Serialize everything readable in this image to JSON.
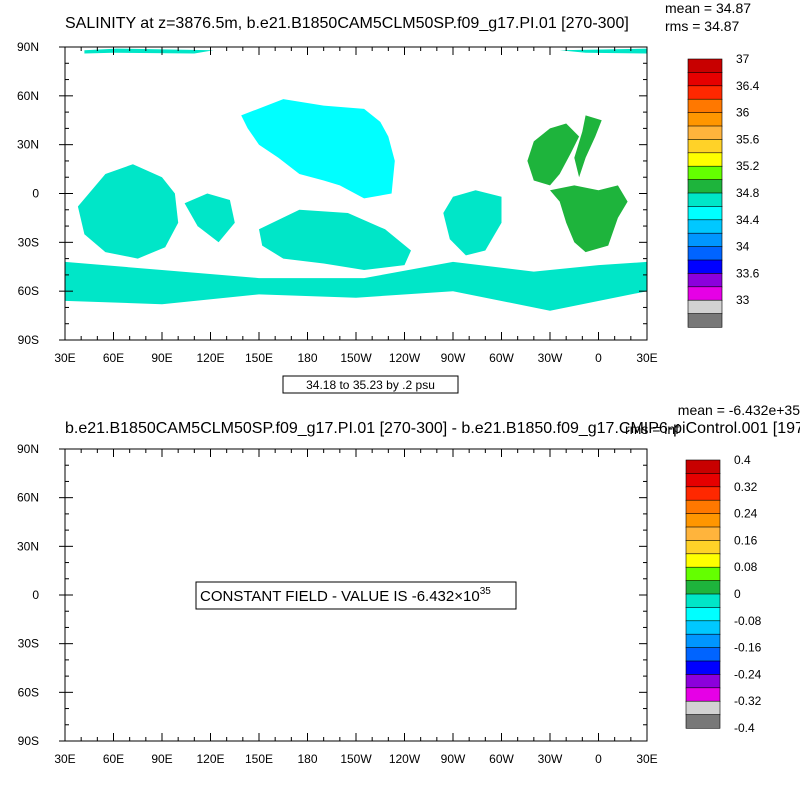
{
  "chart_data": [
    {
      "type": "heatmap",
      "title": "SALINITY at z=3876.5m, b.e21.B1850CAM5CLM50SP.f09_g17.PI.01 [270-300]",
      "stats": {
        "mean": "mean = 34.87",
        "rms": "rms = 34.87"
      },
      "x_ticks": [
        "30E",
        "60E",
        "90E",
        "120E",
        "150E",
        "180",
        "150W",
        "120W",
        "90W",
        "60W",
        "30W",
        "0",
        "30E"
      ],
      "y_ticks": [
        "90N",
        "60N",
        "30N",
        "0",
        "30S",
        "60S",
        "90S"
      ],
      "xlim": [
        30,
        390
      ],
      "ylim": [
        -90,
        90
      ],
      "info_label": "34.18 to 35.23 by .2 psu",
      "colorbar": {
        "labels": [
          "37",
          "36.4",
          "36",
          "35.6",
          "35.2",
          "34.8",
          "34.4",
          "34",
          "33.6",
          "33"
        ],
        "colors": [
          "#c80000",
          "#e60000",
          "#ff2800",
          "#ff7800",
          "#ff9600",
          "#ffb43c",
          "#ffd228",
          "#ffff00",
          "#64ff00",
          "#1eb43c",
          "#00e6c8",
          "#00ffff",
          "#00c8ff",
          "#0096ff",
          "#0064ff",
          "#0000ff",
          "#8c00dc",
          "#e600e6",
          "#d2d2d2",
          "#787878"
        ]
      },
      "regions": [
        {
          "name": "Arctic strip west",
          "color": "#00e6c8",
          "points": [
            [
              42,
              88
            ],
            [
              62,
              89
            ],
            [
              122,
              88
            ],
            [
              110,
              86
            ],
            [
              60,
              86.5
            ],
            [
              42,
              86
            ]
          ]
        },
        {
          "name": "Arctic strip east",
          "color": "#00e6c8",
          "points": [
            [
              336,
              88
            ],
            [
              390,
              89
            ],
            [
              390,
              86
            ],
            [
              352,
              86.5
            ]
          ]
        },
        {
          "name": "North Pacific",
          "color": "#00ffff",
          "points": [
            [
              139,
              48
            ],
            [
              165,
              58
            ],
            [
              190,
              54
            ],
            [
              215,
              52
            ],
            [
              225,
              44
            ],
            [
              230,
              35
            ],
            [
              234,
              20
            ],
            [
              232,
              0
            ],
            [
              215,
              -3
            ],
            [
              200,
              5
            ],
            [
              190,
              8
            ],
            [
              175,
              12
            ],
            [
              162,
              22
            ],
            [
              150,
              30
            ],
            [
              143,
              40
            ]
          ]
        },
        {
          "name": "North Atlantic",
          "color": "#1eb43c",
          "points": [
            [
              316,
              20
            ],
            [
              320,
              32
            ],
            [
              330,
              40
            ],
            [
              340,
              43
            ],
            [
              348,
              35
            ],
            [
              343,
              25
            ],
            [
              336,
              12
            ],
            [
              330,
              5
            ],
            [
              320,
              8
            ]
          ]
        },
        {
          "name": "Atlantic east arm",
          "color": "#1eb43c",
          "points": [
            [
              352,
              48
            ],
            [
              362,
              45
            ],
            [
              358,
              35
            ],
            [
              352,
              22
            ],
            [
              348,
              10
            ],
            [
              345,
              22
            ],
            [
              350,
              38
            ]
          ]
        },
        {
          "name": "South Atlantic",
          "color": "#1eb43c",
          "points": [
            [
              330,
              2
            ],
            [
              336,
              -5
            ],
            [
              340,
              -18
            ],
            [
              345,
              -30
            ],
            [
              352,
              -36
            ],
            [
              366,
              -32
            ],
            [
              372,
              -15
            ],
            [
              378,
              -5
            ],
            [
              372,
              5
            ],
            [
              360,
              2
            ],
            [
              345,
              5
            ]
          ]
        },
        {
          "name": "Indian Ocean",
          "color": "#00e6c8",
          "points": [
            [
              38,
              -8
            ],
            [
              55,
              12
            ],
            [
              72,
              18
            ],
            [
              90,
              10
            ],
            [
              98,
              0
            ],
            [
              100,
              -18
            ],
            [
              92,
              -33
            ],
            [
              75,
              -40
            ],
            [
              55,
              -36
            ],
            [
              42,
              -25
            ]
          ]
        },
        {
          "name": "Western Pacific",
          "color": "#00e6c8",
          "points": [
            [
              104,
              -6
            ],
            [
              118,
              0
            ],
            [
              132,
              -4
            ],
            [
              135,
              -18
            ],
            [
              125,
              -30
            ],
            [
              112,
              -20
            ]
          ]
        },
        {
          "name": "South Pacific",
          "color": "#00e6c8",
          "points": [
            [
              150,
              -22
            ],
            [
              175,
              -10
            ],
            [
              205,
              -12
            ],
            [
              228,
              -22
            ],
            [
              244,
              -35
            ],
            [
              240,
              -44
            ],
            [
              215,
              -47
            ],
            [
              190,
              -43
            ],
            [
              165,
              -40
            ],
            [
              152,
              -32
            ]
          ]
        },
        {
          "name": "Eastern Pacific",
          "color": "#00e6c8",
          "points": [
            [
              270,
              -2
            ],
            [
              284,
              2
            ],
            [
              300,
              -2
            ],
            [
              300,
              -18
            ],
            [
              290,
              -35
            ],
            [
              278,
              -38
            ],
            [
              268,
              -28
            ],
            [
              264,
              -12
            ]
          ]
        },
        {
          "name": "Southern Ocean",
          "color": "#00e6c8",
          "points": [
            [
              30,
              -42
            ],
            [
              90,
              -47
            ],
            [
              150,
              -52
            ],
            [
              215,
              -52
            ],
            [
              270,
              -42
            ],
            [
              320,
              -48
            ],
            [
              360,
              -44
            ],
            [
              390,
              -42
            ],
            [
              390,
              -60
            ],
            [
              330,
              -72
            ],
            [
              270,
              -60
            ],
            [
              210,
              -64
            ],
            [
              150,
              -62
            ],
            [
              90,
              -68
            ],
            [
              30,
              -66
            ]
          ]
        }
      ]
    },
    {
      "type": "heatmap",
      "title": "b.e21.B1850CAM5CLM50SP.f09_g17.PI.01 [270-300] - b.e21.B1850.f09_g17.CMIP6-piControl.001 [197",
      "stats": {
        "mean": "mean = -6.432e+35",
        "rms": "rms = inf"
      },
      "x_ticks": [
        "30E",
        "60E",
        "90E",
        "120E",
        "150E",
        "180",
        "150W",
        "120W",
        "90W",
        "60W",
        "30W",
        "0",
        "30E"
      ],
      "y_ticks": [
        "90N",
        "60N",
        "30N",
        "0",
        "30S",
        "60S",
        "90S"
      ],
      "xlim": [
        30,
        390
      ],
      "ylim": [
        -90,
        90
      ],
      "constant_field": {
        "prefix": "CONSTANT FIELD - VALUE IS -6.432×10",
        "exponent": "35"
      },
      "colorbar": {
        "labels": [
          "0.4",
          "0.32",
          "0.24",
          "0.16",
          "0.08",
          "0",
          "-0.08",
          "-0.16",
          "-0.24",
          "-0.32",
          "-0.4"
        ],
        "colors": [
          "#c80000",
          "#e60000",
          "#ff2800",
          "#ff7800",
          "#ff9600",
          "#ffb43c",
          "#ffd228",
          "#ffff00",
          "#64ff00",
          "#1eb43c",
          "#00e6c8",
          "#00ffff",
          "#00c8ff",
          "#0096ff",
          "#0064ff",
          "#0000ff",
          "#8c00dc",
          "#e600e6",
          "#d2d2d2",
          "#787878"
        ]
      }
    }
  ]
}
